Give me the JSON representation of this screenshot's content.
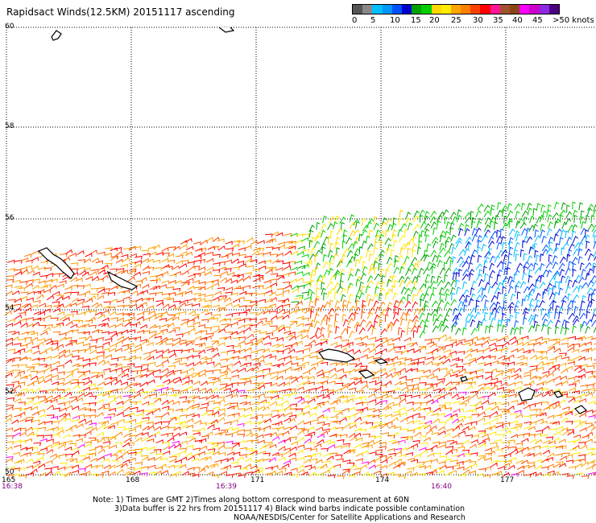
{
  "title": "Rapidsact Winds(12.5KM) 20151117 ascending",
  "colorbar": {
    "colors": [
      "#555555",
      "#888888",
      "#00bfff",
      "#0096ff",
      "#0050ff",
      "#0000cd",
      "#00a000",
      "#00d000",
      "#ffd700",
      "#ffec00",
      "#ffa500",
      "#ff7f00",
      "#ff4000",
      "#ff0000",
      "#ff1493",
      "#a0522d",
      "#8b4513",
      "#ff00ff",
      "#cc00cc",
      "#8a2be2",
      "#4b0082"
    ],
    "labels": [
      "0",
      "5",
      "10",
      "15",
      "20",
      "25",
      "30",
      "35",
      "40",
      "45",
      ">50 knots"
    ]
  },
  "lat_labels": [
    "60",
    "58",
    "56",
    "54",
    "52",
    "50"
  ],
  "lon_labels": [
    "165",
    "168",
    "171",
    "174",
    "177"
  ],
  "time_labels": [
    "16:38",
    "16:39",
    "16:40"
  ],
  "notes": {
    "line1": "Note: 1) Times are GMT 2)Times along bottom correspond to measurement at 60N",
    "line2": "3)Data buffer is 22 hrs from 20151117 4) Black wind barbs indicate possible contamination",
    "line3": "NOAA/NESDIS/Center for Satellite Applications and Research"
  }
}
